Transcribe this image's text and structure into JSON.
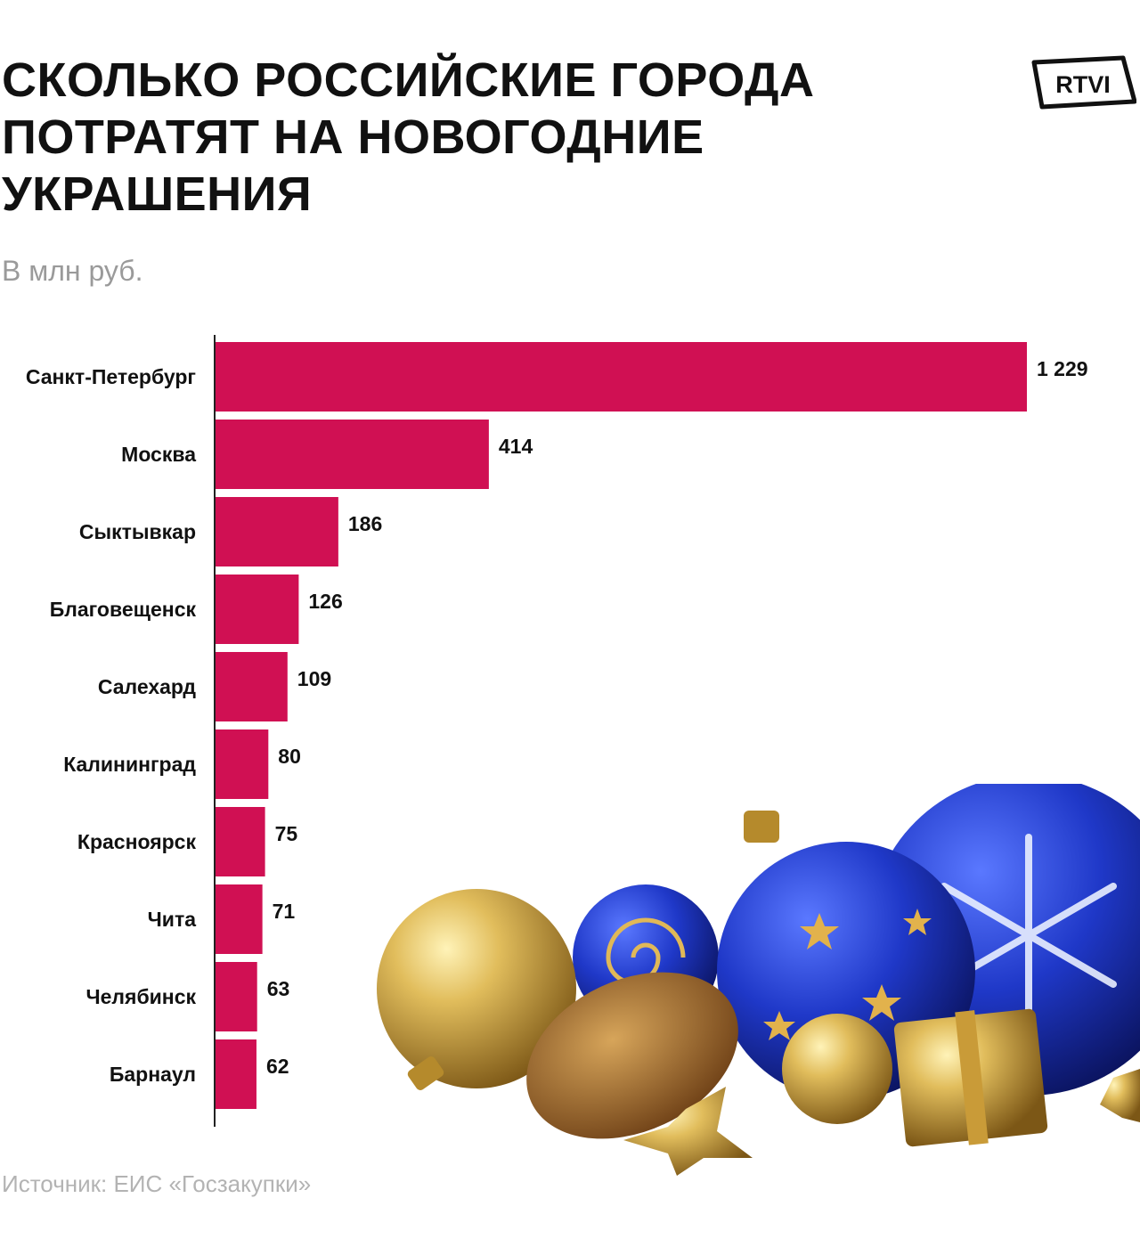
{
  "header": {
    "title": "СКОЛЬКО РОССИЙСКИЕ ГОРОДА ПОТРАТЯТ НА НОВОГОДНИЕ УКРАШЕНИЯ",
    "subtitle": "В млн руб.",
    "logo_text": "RTVI"
  },
  "footer": {
    "source": "Источник: ЕИС «Госзакупки»"
  },
  "colors": {
    "bar": "#d01053",
    "text": "#111111",
    "muted": "#9a9a9a"
  },
  "decoration": {
    "icon": "christmas-ornaments-picture"
  },
  "chart_data": {
    "type": "bar",
    "orientation": "horizontal",
    "categories": [
      "Санкт-Петербург",
      "Москва",
      "Сыктывкар",
      "Благовещенск",
      "Салехард",
      "Калининград",
      "Красноярск",
      "Чита",
      "Челябинск",
      "Барнаул"
    ],
    "values": [
      1229,
      414,
      186,
      126,
      109,
      80,
      75,
      71,
      63,
      62
    ],
    "value_labels": [
      "1 229",
      "414",
      "186",
      "126",
      "109",
      "80",
      "75",
      "71",
      "63",
      "62"
    ],
    "xlim": [
      0,
      1229
    ],
    "grid": false,
    "legend": "none"
  }
}
